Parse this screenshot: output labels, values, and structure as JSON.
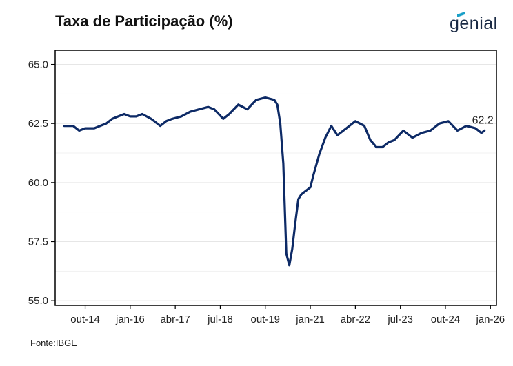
{
  "header": {
    "title": "Taxa de Participação (%)",
    "logo_text": "genial"
  },
  "footer": {
    "source": "Fonte:IBGE"
  },
  "colors": {
    "line": "#0d2a66",
    "logo_accent": "#1aa0c8"
  },
  "chart_data": {
    "type": "line",
    "title": "Taxa de Participação (%)",
    "xlabel": "",
    "ylabel": "",
    "ylim": [
      54.8,
      65.6
    ],
    "yticks": [
      55.0,
      57.5,
      60.0,
      62.5,
      65.0
    ],
    "ytick_labels": [
      "55.0",
      "57.5",
      "60.0",
      "62.5",
      "65.0"
    ],
    "xlim": [
      "2013-12",
      "2026-03"
    ],
    "xticks": [
      "2014-10",
      "2016-01",
      "2017-04",
      "2018-07",
      "2019-10",
      "2021-01",
      "2022-04",
      "2023-07",
      "2024-10",
      "2026-01"
    ],
    "xtick_labels": [
      "out-14",
      "jan-16",
      "abr-17",
      "jul-18",
      "out-19",
      "jan-21",
      "abr-22",
      "jul-23",
      "out-24",
      "jan-26"
    ],
    "grid": true,
    "last_value_label": "62.2",
    "series": [
      {
        "x": [
          "2014-03",
          "2014-06",
          "2014-08",
          "2014-10",
          "2015-01",
          "2015-03",
          "2015-05",
          "2015-07",
          "2015-09",
          "2015-11",
          "2016-01",
          "2016-03",
          "2016-05",
          "2016-08",
          "2016-11",
          "2017-01",
          "2017-03",
          "2017-06",
          "2017-09",
          "2017-12",
          "2018-03",
          "2018-05",
          "2018-08",
          "2018-10",
          "2019-01",
          "2019-04",
          "2019-07",
          "2019-10",
          "2020-01",
          "2020-02",
          "2020-03",
          "2020-04",
          "2020-05",
          "2020-06",
          "2020-07",
          "2020-08",
          "2020-09",
          "2020-10",
          "2021-01",
          "2021-02",
          "2021-04",
          "2021-06",
          "2021-08",
          "2021-10",
          "2022-01",
          "2022-04",
          "2022-07",
          "2022-09",
          "2022-11",
          "2023-01",
          "2023-03",
          "2023-05",
          "2023-08",
          "2023-11",
          "2024-02",
          "2024-05",
          "2024-08",
          "2024-11",
          "2025-02",
          "2025-05",
          "2025-08",
          "2025-10",
          "2025-11"
        ],
        "values": [
          62.4,
          62.4,
          62.2,
          62.3,
          62.3,
          62.4,
          62.5,
          62.7,
          62.8,
          62.9,
          62.8,
          62.8,
          62.9,
          62.7,
          62.4,
          62.6,
          62.7,
          62.8,
          63.0,
          63.1,
          63.2,
          63.1,
          62.7,
          62.9,
          63.3,
          63.1,
          63.5,
          63.6,
          63.5,
          63.3,
          62.5,
          60.8,
          57.0,
          56.5,
          57.2,
          58.3,
          59.3,
          59.5,
          59.8,
          60.3,
          61.2,
          61.9,
          62.4,
          62.0,
          62.3,
          62.6,
          62.4,
          61.8,
          61.5,
          61.5,
          61.7,
          61.8,
          62.2,
          61.9,
          62.1,
          62.2,
          62.5,
          62.6,
          62.2,
          62.4,
          62.3,
          62.1,
          62.2
        ]
      }
    ]
  }
}
